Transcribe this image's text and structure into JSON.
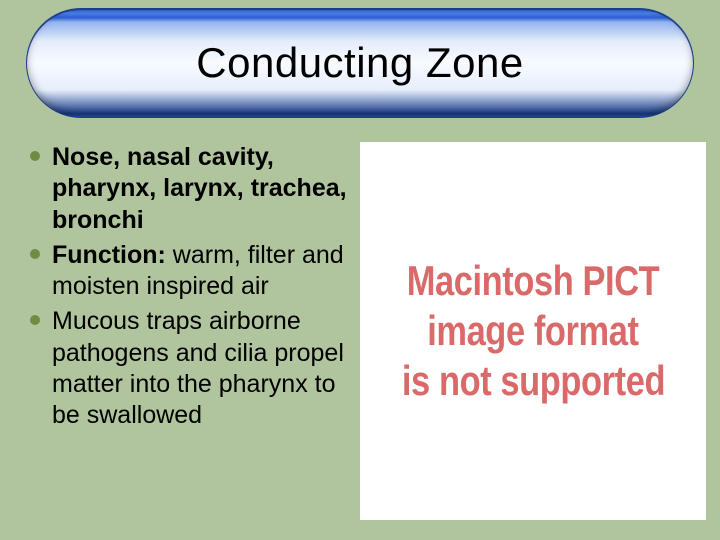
{
  "slide": {
    "background_color": "#b0c49d",
    "title": {
      "text": "Conducting Zone",
      "font_size": 42,
      "color": "#000000",
      "banner_gradient_stops": [
        "#2a5fd0",
        "#4b7de6",
        "#93b3f0",
        "#e4edfb",
        "#f8faff",
        "#e6eefc",
        "#1b3d8a"
      ]
    },
    "bullets": {
      "marker_color": "#6e8d42",
      "items": [
        {
          "bold_prefix": "Nose, nasal cavity,",
          "rest": " pharynx, larynx, trachea, bronchi",
          "rest_bold": true
        },
        {
          "bold_prefix": "Function:",
          "rest": "  warm, filter and moisten inspired air",
          "rest_bold": false
        },
        {
          "bold_prefix": "",
          "rest": "Mucous traps airborne pathogens and cilia propel matter into the pharynx to be swallowed",
          "rest_bold": false
        }
      ],
      "font_size": 25,
      "text_color": "#000000"
    },
    "placeholder": {
      "lines": [
        "Macintosh PICT",
        "image format",
        "is not supported"
      ],
      "text_color": "#da6a6a",
      "background_color": "#ffffff",
      "font_size": 42,
      "font_weight": 700
    }
  }
}
